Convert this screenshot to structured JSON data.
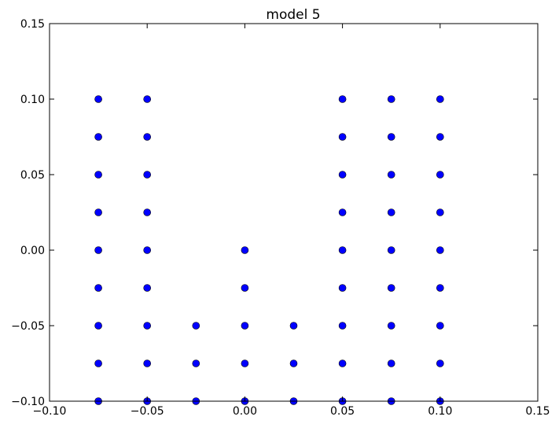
{
  "chart_data": {
    "type": "scatter",
    "title": "model 5",
    "xlabel": "",
    "ylabel": "",
    "xlim": [
      -0.1,
      0.15
    ],
    "ylim": [
      -0.1,
      0.15
    ],
    "grid": false,
    "legend": "none",
    "marker_color": "#0000ff",
    "marker_edge_color": "#000000",
    "x_ticks": [
      "−0.10",
      "−0.05",
      "0.00",
      "0.05",
      "0.10",
      "0.15"
    ],
    "y_ticks": [
      "−0.10",
      "−0.05",
      "0.00",
      "0.05",
      "0.10",
      "0.15"
    ],
    "points": [
      [
        -0.075,
        0.1
      ],
      [
        -0.075,
        0.075
      ],
      [
        -0.075,
        0.05
      ],
      [
        -0.075,
        0.025
      ],
      [
        -0.075,
        0.0
      ],
      [
        -0.075,
        -0.025
      ],
      [
        -0.075,
        -0.05
      ],
      [
        -0.075,
        -0.075
      ],
      [
        -0.075,
        -0.1
      ],
      [
        -0.05,
        0.1
      ],
      [
        -0.05,
        0.075
      ],
      [
        -0.05,
        0.05
      ],
      [
        -0.05,
        0.025
      ],
      [
        -0.05,
        0.0
      ],
      [
        -0.05,
        -0.025
      ],
      [
        -0.05,
        -0.05
      ],
      [
        -0.05,
        -0.075
      ],
      [
        -0.05,
        -0.1
      ],
      [
        -0.025,
        -0.05
      ],
      [
        -0.025,
        -0.075
      ],
      [
        -0.025,
        -0.1
      ],
      [
        0.0,
        0.0
      ],
      [
        0.0,
        -0.025
      ],
      [
        0.0,
        -0.05
      ],
      [
        0.0,
        -0.075
      ],
      [
        0.0,
        -0.1
      ],
      [
        0.025,
        -0.05
      ],
      [
        0.025,
        -0.075
      ],
      [
        0.025,
        -0.1
      ],
      [
        0.05,
        0.1
      ],
      [
        0.05,
        0.075
      ],
      [
        0.05,
        0.05
      ],
      [
        0.05,
        0.025
      ],
      [
        0.05,
        0.0
      ],
      [
        0.05,
        -0.025
      ],
      [
        0.05,
        -0.05
      ],
      [
        0.05,
        -0.075
      ],
      [
        0.05,
        -0.1
      ],
      [
        0.075,
        0.1
      ],
      [
        0.075,
        0.075
      ],
      [
        0.075,
        0.05
      ],
      [
        0.075,
        0.025
      ],
      [
        0.075,
        0.0
      ],
      [
        0.075,
        -0.025
      ],
      [
        0.075,
        -0.05
      ],
      [
        0.075,
        -0.075
      ],
      [
        0.075,
        -0.1
      ],
      [
        0.1,
        0.1
      ],
      [
        0.1,
        0.075
      ],
      [
        0.1,
        0.05
      ],
      [
        0.1,
        0.025
      ],
      [
        0.1,
        0.0
      ],
      [
        0.1,
        -0.025
      ],
      [
        0.1,
        -0.05
      ],
      [
        0.1,
        -0.075
      ],
      [
        0.1,
        -0.1
      ]
    ]
  }
}
